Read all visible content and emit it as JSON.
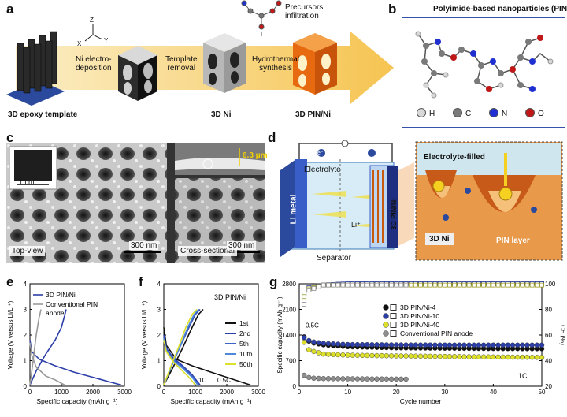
{
  "panel_labels": {
    "a": "a",
    "b": "b",
    "c": "c",
    "d": "d",
    "e": "e",
    "f": "f",
    "g": "g"
  },
  "colors": {
    "pin_orange": "#e86a10",
    "pale_yellow": "#f7dd9a",
    "blue": "#2c3ea8",
    "mid_blue": "#3e63c8",
    "yellow_green": "#dde02a",
    "gray": "#8e8e8e"
  },
  "panel_a": {
    "axes": {
      "z": "Z",
      "x": "X",
      "y": "Y"
    },
    "steps": [
      "Ni electro-\ndeposition",
      "Template\nremoval",
      "Hydrothermal\nsynthesis"
    ],
    "precursors": "Precursors\ninfiltration",
    "captions": [
      "3D epoxy template",
      "3D Ni",
      "3D PIN/Ni"
    ]
  },
  "panel_b": {
    "title": "Polyimide-based nanoparticles (PIN)",
    "legend": [
      {
        "symbol": "H",
        "color": "#d8d8d8"
      },
      {
        "symbol": "C",
        "color": "#7a7a7a"
      },
      {
        "symbol": "N",
        "color": "#2030d0"
      },
      {
        "symbol": "O",
        "color": "#c01818"
      }
    ]
  },
  "panel_c": {
    "inset_scale": "1 cm",
    "top_label": "Top-view",
    "top_scale": "300 nm",
    "cross_label": "Cross-sectional",
    "cross_scale": "300 nm",
    "thickness": "6.3 μm"
  },
  "panel_d": {
    "electrolyte": "Electrolyte",
    "li_metal": "Li metal",
    "pin_ni": "3D PIN/Ni",
    "separator": "Separator",
    "li_plus": "Li⁺",
    "electron": "e⁻",
    "electrolyte_filled": "Electrolyte-filled",
    "ni_3d": "3D Ni",
    "pin_layer": "PIN layer"
  },
  "chart_data": [
    {
      "type": "line",
      "panel": "e",
      "xlabel": "Specific capacity (mAh g⁻¹)",
      "ylabel": "Voltage (V versus Li/Li⁺)",
      "xlim": [
        0,
        3000
      ],
      "ylim": [
        0,
        4
      ],
      "xticks": [
        0,
        1000,
        2000,
        3000
      ],
      "yticks": [
        0,
        1,
        2,
        3,
        4
      ],
      "series": [
        {
          "name": "3D PIN/Ni",
          "color": "#2c3ea8",
          "discharge": [
            [
              0,
              1.8
            ],
            [
              60,
              1.35
            ],
            [
              300,
              1.05
            ],
            [
              800,
              0.8
            ],
            [
              1400,
              0.55
            ],
            [
              2000,
              0.35
            ],
            [
              2500,
              0.18
            ],
            [
              2900,
              0.05
            ]
          ],
          "charge": [
            [
              0,
              0.05
            ],
            [
              200,
              0.6
            ],
            [
              500,
              1.25
            ],
            [
              800,
              1.8
            ],
            [
              1000,
              2.3
            ],
            [
              1100,
              2.75
            ],
            [
              1150,
              3.0
            ]
          ]
        },
        {
          "name": "Conventional PIN\nanode",
          "color": "#999999",
          "discharge": [
            [
              0,
              1.7
            ],
            [
              60,
              1.2
            ],
            [
              200,
              0.75
            ],
            [
              500,
              0.4
            ],
            [
              800,
              0.25
            ],
            [
              1100,
              0.05
            ]
          ],
          "charge": [
            [
              0,
              0.05
            ],
            [
              60,
              0.6
            ],
            [
              120,
              1.2
            ],
            [
              200,
              2.0
            ],
            [
              280,
              2.6
            ],
            [
              350,
              3.0
            ]
          ]
        }
      ]
    },
    {
      "type": "line",
      "panel": "f",
      "title": "3D PIN/Ni",
      "xlabel": "Specific capacity (mAh g⁻¹)",
      "ylabel": "Voltage (V versus Li/Li⁺)",
      "xlim": [
        0,
        3000
      ],
      "ylim": [
        0,
        4
      ],
      "xticks": [
        0,
        1000,
        2000,
        3000
      ],
      "yticks": [
        0,
        1,
        2,
        3,
        4
      ],
      "annotations": [
        "1C",
        "0.5C"
      ],
      "series": [
        {
          "name": "1st",
          "color": "#111111",
          "discharge": [
            [
              0,
              2.3
            ],
            [
              80,
              1.6
            ],
            [
              400,
              1.05
            ],
            [
              900,
              0.8
            ],
            [
              1500,
              0.55
            ],
            [
              2000,
              0.35
            ],
            [
              2500,
              0.15
            ],
            [
              2750,
              0.05
            ]
          ],
          "charge": [
            [
              0,
              0.05
            ],
            [
              300,
              0.75
            ],
            [
              600,
              1.5
            ],
            [
              900,
              2.3
            ],
            [
              1100,
              2.8
            ],
            [
              1250,
              3.0
            ]
          ]
        },
        {
          "name": "2nd",
          "color": "#2c3ea8",
          "discharge": [
            [
              0,
              2.0
            ],
            [
              80,
              1.5
            ],
            [
              300,
              1.1
            ],
            [
              600,
              0.8
            ],
            [
              900,
              0.45
            ],
            [
              1150,
              0.05
            ]
          ],
          "charge": [
            [
              0,
              0.05
            ],
            [
              250,
              0.8
            ],
            [
              500,
              1.5
            ],
            [
              800,
              2.3
            ],
            [
              1000,
              2.8
            ],
            [
              1150,
              3.0
            ]
          ]
        },
        {
          "name": "5th",
          "color": "#3e63c8",
          "discharge": [
            [
              0,
              1.9
            ],
            [
              80,
              1.45
            ],
            [
              300,
              1.05
            ],
            [
              600,
              0.75
            ],
            [
              900,
              0.4
            ],
            [
              1100,
              0.05
            ]
          ],
          "charge": [
            [
              0,
              0.05
            ],
            [
              250,
              0.8
            ],
            [
              500,
              1.5
            ],
            [
              780,
              2.3
            ],
            [
              980,
              2.8
            ],
            [
              1120,
              3.0
            ]
          ]
        },
        {
          "name": "10th",
          "color": "#4f88d8",
          "discharge": [
            [
              0,
              1.85
            ],
            [
              80,
              1.4
            ],
            [
              300,
              1.0
            ],
            [
              600,
              0.7
            ],
            [
              900,
              0.35
            ],
            [
              1080,
              0.05
            ]
          ],
          "charge": [
            [
              0,
              0.05
            ],
            [
              250,
              0.8
            ],
            [
              500,
              1.5
            ],
            [
              760,
              2.3
            ],
            [
              960,
              2.8
            ],
            [
              1100,
              3.0
            ]
          ]
        },
        {
          "name": "50th",
          "color": "#dde02a",
          "discharge": [
            [
              0,
              1.8
            ],
            [
              80,
              1.35
            ],
            [
              300,
              0.95
            ],
            [
              550,
              0.65
            ],
            [
              800,
              0.35
            ],
            [
              1000,
              0.05
            ]
          ],
          "charge": [
            [
              0,
              0.05
            ],
            [
              230,
              0.8
            ],
            [
              460,
              1.5
            ],
            [
              700,
              2.3
            ],
            [
              900,
              2.8
            ],
            [
              1050,
              3.0
            ]
          ]
        }
      ]
    },
    {
      "type": "scatter",
      "panel": "g",
      "xlabel": "Cycle number",
      "ylabel": "Specific capacity (mAh g⁻¹)",
      "y2label": "CE (%)",
      "xlim": [
        0,
        50
      ],
      "ylim": [
        0,
        2800
      ],
      "y2lim": [
        20,
        100
      ],
      "xticks": [
        0,
        10,
        20,
        30,
        40,
        50
      ],
      "yticks": [
        0,
        700,
        1400,
        2100,
        2800
      ],
      "y2ticks": [
        20,
        40,
        60,
        80,
        100
      ],
      "annotations": [
        "0.5C",
        "1C"
      ],
      "series": [
        {
          "name": "3D PIN/Ni-4",
          "color": "#111111",
          "capacity": [
            [
              1,
              1350
            ],
            [
              2,
              1230
            ],
            [
              3,
              1180
            ],
            [
              5,
              1130
            ],
            [
              10,
              1080
            ],
            [
              20,
              1050
            ],
            [
              30,
              1040
            ],
            [
              40,
              1030
            ],
            [
              50,
              1025
            ]
          ],
          "ce": [
            [
              1,
              92
            ],
            [
              2,
              96
            ],
            [
              5,
              99
            ],
            [
              10,
              100
            ],
            [
              50,
              100
            ]
          ]
        },
        {
          "name": "3D PIN/Ni-10",
          "color": "#2c3ea8",
          "capacity": [
            [
              1,
              1330
            ],
            [
              2,
              1250
            ],
            [
              3,
              1210
            ],
            [
              5,
              1170
            ],
            [
              10,
              1140
            ],
            [
              20,
              1130
            ],
            [
              30,
              1125
            ],
            [
              40,
              1125
            ],
            [
              50,
              1125
            ]
          ],
          "ce": [
            [
              1,
              92
            ],
            [
              2,
              97
            ],
            [
              5,
              99
            ],
            [
              10,
              100
            ],
            [
              50,
              100
            ]
          ]
        },
        {
          "name": "3D PIN/Ni-40",
          "color": "#dde02a",
          "capacity": [
            [
              1,
              1200
            ],
            [
              2,
              1000
            ],
            [
              3,
              950
            ],
            [
              5,
              880
            ],
            [
              10,
              850
            ],
            [
              20,
              830
            ],
            [
              30,
              815
            ],
            [
              40,
              800
            ],
            [
              50,
              790
            ]
          ],
          "ce": [
            [
              1,
              90
            ],
            [
              2,
              96
            ],
            [
              5,
              99
            ],
            [
              10,
              99
            ],
            [
              50,
              99
            ]
          ]
        },
        {
          "name": "Conventional PIN anode",
          "color": "#8e8e8e",
          "capacity": [
            [
              1,
              300
            ],
            [
              2,
              240
            ],
            [
              3,
              220
            ],
            [
              5,
              210
            ],
            [
              10,
              205
            ],
            [
              15,
              200
            ],
            [
              22,
              195
            ]
          ],
          "ce": [
            [
              1,
              84
            ],
            [
              2,
              95
            ],
            [
              5,
              99
            ],
            [
              10,
              99
            ],
            [
              22,
              99
            ]
          ]
        }
      ]
    }
  ]
}
